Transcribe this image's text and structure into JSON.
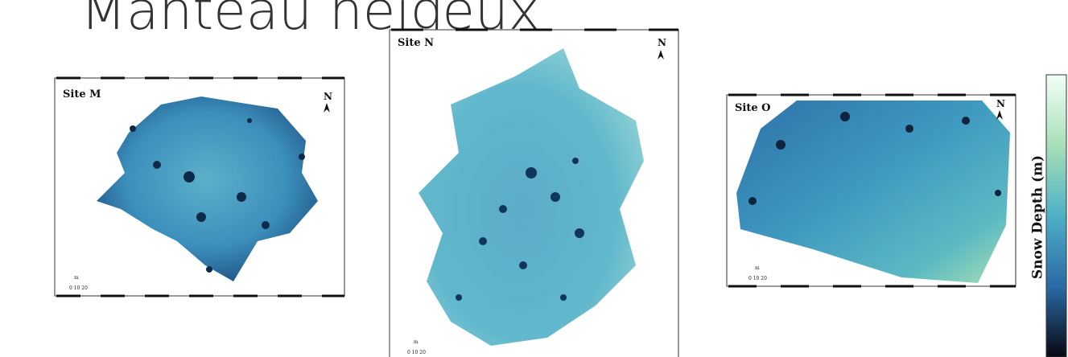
{
  "title": "Manteau neigeux",
  "panels": [
    {
      "site": "Site M",
      "north": "N",
      "scale_unit": "m",
      "scale_ticks": "0 10 20"
    },
    {
      "site": "Site N",
      "north": "N",
      "scale_unit": "m",
      "scale_ticks": "0 10 20"
    },
    {
      "site": "Site O",
      "north": "N",
      "scale_unit": "m",
      "scale_ticks": "0 10 20"
    }
  ],
  "colorbar_label": "Snow Depth (m)"
}
